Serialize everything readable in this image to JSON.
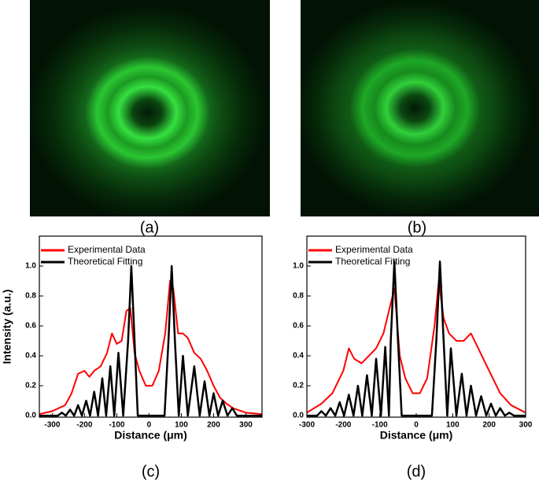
{
  "images": [
    {
      "caption": "(a)"
    },
    {
      "caption": "(b)"
    }
  ],
  "chart_data": [
    {
      "type": "line",
      "caption": "(c)",
      "xlabel": "Distance (μm)",
      "ylabel": "Intensity (a.u.)",
      "xlim": [
        -340,
        350
      ],
      "ylim": [
        -0.01,
        1.2
      ],
      "xticks": [
        -300,
        -200,
        -100,
        0,
        100,
        200,
        300
      ],
      "yticks": [
        {
          "value": 0,
          "label": "0.0"
        },
        {
          "value": 0.2,
          "label": "0.2"
        },
        {
          "value": 0.4,
          "label": "0.4"
        },
        {
          "value": 0.6,
          "label": "0.6"
        },
        {
          "value": 0.8,
          "label": "0.8"
        },
        {
          "value": 1,
          "label": "1.0"
        }
      ],
      "legend": "upper left",
      "series": [
        {
          "name": "Experimental Data",
          "color": "#ff0000",
          "x": [
            -340,
            -300,
            -260,
            -240,
            -220,
            -200,
            -185,
            -170,
            -150,
            -130,
            -115,
            -100,
            -85,
            -70,
            -58,
            -45,
            -30,
            -10,
            10,
            30,
            50,
            65,
            75,
            90,
            105,
            120,
            140,
            160,
            180,
            200,
            220,
            240,
            260,
            300,
            350
          ],
          "values": [
            0.01,
            0.03,
            0.07,
            0.15,
            0.28,
            0.3,
            0.26,
            0.3,
            0.33,
            0.42,
            0.55,
            0.48,
            0.5,
            0.7,
            0.72,
            0.42,
            0.3,
            0.2,
            0.2,
            0.3,
            0.55,
            0.9,
            0.85,
            0.55,
            0.55,
            0.52,
            0.42,
            0.38,
            0.3,
            0.2,
            0.12,
            0.08,
            0.05,
            0.02,
            0.01
          ]
        },
        {
          "name": "Theoretical Fitting",
          "color": "#000000",
          "x": [
            -340,
            -283,
            -270,
            -258,
            -245,
            -232,
            -220,
            -208,
            -195,
            -183,
            -170,
            -158,
            -145,
            -133,
            -120,
            -108,
            -95,
            -80,
            -65,
            -55,
            -45,
            -35,
            48,
            60,
            70,
            80,
            92,
            105,
            120,
            140,
            157,
            172,
            187,
            200,
            214,
            228,
            243,
            258,
            272,
            350
          ],
          "values": [
            0,
            0,
            0.02,
            0,
            0.04,
            0,
            0.07,
            0,
            0.1,
            0,
            0.16,
            0,
            0.25,
            0,
            0.33,
            0,
            0.42,
            0,
            0.5,
            1,
            0.5,
            0,
            0,
            0.5,
            1,
            0.5,
            0,
            0.4,
            0,
            0.33,
            0,
            0.23,
            0,
            0.15,
            0,
            0.1,
            0,
            0.05,
            0,
            0
          ]
        }
      ]
    },
    {
      "type": "line",
      "caption": "(d)",
      "xlabel": "Distance (μm)",
      "xlim": [
        -300,
        300
      ],
      "ylim": [
        -0.01,
        1.2
      ],
      "xticks": [
        -300,
        -200,
        -100,
        0,
        100,
        200,
        300
      ],
      "yticks": [
        {
          "value": 0,
          "label": "0.0"
        },
        {
          "value": 0.2,
          "label": "0.2"
        },
        {
          "value": 0.4,
          "label": "0.4"
        },
        {
          "value": 0.6,
          "label": "0.6"
        },
        {
          "value": 0.8,
          "label": "0.8"
        },
        {
          "value": 1,
          "label": "1.0"
        }
      ],
      "legend": "upper left",
      "series": [
        {
          "name": "Experimental Data",
          "color": "#ff0000",
          "x": [
            -300,
            -260,
            -230,
            -200,
            -185,
            -170,
            -150,
            -130,
            -110,
            -90,
            -75,
            -60,
            -45,
            -30,
            -10,
            10,
            30,
            50,
            62,
            75,
            90,
            110,
            130,
            150,
            170,
            190,
            210,
            230,
            260,
            300
          ],
          "values": [
            0.02,
            0.08,
            0.15,
            0.3,
            0.45,
            0.38,
            0.35,
            0.4,
            0.45,
            0.55,
            0.7,
            0.85,
            0.4,
            0.25,
            0.15,
            0.15,
            0.25,
            0.6,
            0.9,
            0.65,
            0.55,
            0.5,
            0.5,
            0.55,
            0.45,
            0.35,
            0.25,
            0.15,
            0.07,
            0.02
          ]
        },
        {
          "name": "Theoretical Fitting",
          "color": "#000000",
          "x": [
            -300,
            -272,
            -260,
            -248,
            -235,
            -222,
            -210,
            -198,
            -185,
            -172,
            -160,
            -148,
            -135,
            -122,
            -110,
            -97,
            -85,
            -75,
            -70,
            -60,
            -50,
            -40,
            43,
            55,
            65,
            75,
            85,
            95,
            110,
            125,
            138,
            150,
            164,
            178,
            192,
            205,
            218,
            230,
            243,
            255,
            268,
            300
          ],
          "values": [
            0,
            0,
            0.03,
            0,
            0.05,
            0,
            0.09,
            0,
            0.14,
            0,
            0.2,
            0,
            0.27,
            0,
            0.38,
            0,
            0.46,
            0,
            0.5,
            1.03,
            0.5,
            0,
            0,
            0.5,
            1.03,
            0.5,
            0,
            0.45,
            0,
            0.28,
            0,
            0.2,
            0,
            0.13,
            0,
            0.08,
            0,
            0.05,
            0,
            0.02,
            0,
            0
          ]
        }
      ]
    }
  ]
}
